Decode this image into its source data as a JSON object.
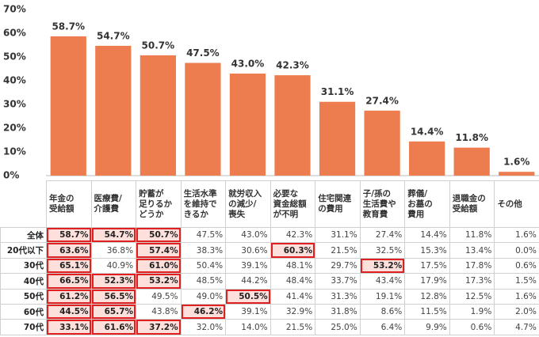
{
  "chart_data": {
    "type": "bar",
    "categories": [
      "年金の\n受給額",
      "医療費/\n介護費",
      "貯蓄が\n足りるか\nどうか",
      "生活水準\nを維持で\nきるか",
      "就労収入\nの減少/\n喪失",
      "必要な\n資金総額\nが不明",
      "住宅関連\nの費用",
      "子/孫の\n生活費や\n教育費",
      "葬儀/\nお墓の\n費用",
      "退職金の\n受給額",
      "その他"
    ],
    "values": [
      58.7,
      54.7,
      50.7,
      47.5,
      43.0,
      42.3,
      31.1,
      27.4,
      14.4,
      11.8,
      1.6
    ],
    "value_labels": [
      "58.7%",
      "54.7%",
      "50.7%",
      "47.5%",
      "43.0%",
      "42.3%",
      "31.1%",
      "27.4%",
      "14.4%",
      "11.8%",
      "1.6%"
    ],
    "color": "#ed7d4f",
    "ylim": [
      0,
      70
    ],
    "yticks": [
      {
        "value": 0,
        "label": "0%"
      },
      {
        "value": 10,
        "label": "10%"
      },
      {
        "value": 20,
        "label": "20%"
      },
      {
        "value": 30,
        "label": "30%"
      },
      {
        "value": 40,
        "label": "40%"
      },
      {
        "value": 50,
        "label": "50%"
      },
      {
        "value": 60,
        "label": "60%"
      },
      {
        "value": 70,
        "label": "70%"
      }
    ]
  },
  "table": {
    "highlight_color": "#fde0dc",
    "border_color": "#e02020",
    "rows": [
      {
        "label": "全体",
        "cells": [
          "58.7%",
          "54.7%",
          "50.7%",
          "47.5%",
          "43.0%",
          "42.3%",
          "31.1%",
          "27.4%",
          "14.4%",
          "11.8%",
          "1.6%"
        ],
        "highlight": [
          0,
          1,
          2
        ]
      },
      {
        "label": "20代以下",
        "cells": [
          "63.6%",
          "36.8%",
          "57.4%",
          "38.3%",
          "30.6%",
          "60.3%",
          "21.5%",
          "32.5%",
          "15.3%",
          "13.4%",
          "0.0%"
        ],
        "highlight": [
          0,
          2,
          5
        ]
      },
      {
        "label": "30代",
        "cells": [
          "65.1%",
          "40.9%",
          "61.0%",
          "50.4%",
          "39.1%",
          "48.1%",
          "29.7%",
          "53.2%",
          "17.5%",
          "17.8%",
          "0.6%"
        ],
        "highlight": [
          0,
          2,
          7
        ]
      },
      {
        "label": "40代",
        "cells": [
          "66.5%",
          "52.3%",
          "53.2%",
          "48.5%",
          "44.2%",
          "48.4%",
          "33.7%",
          "43.4%",
          "17.9%",
          "17.3%",
          "1.5%"
        ],
        "highlight": [
          0,
          1,
          2
        ]
      },
      {
        "label": "50代",
        "cells": [
          "61.2%",
          "56.5%",
          "49.5%",
          "49.0%",
          "50.5%",
          "41.4%",
          "31.3%",
          "19.1%",
          "12.8%",
          "12.5%",
          "1.6%"
        ],
        "highlight": [
          0,
          1,
          4
        ]
      },
      {
        "label": "60代",
        "cells": [
          "44.5%",
          "65.7%",
          "43.8%",
          "46.2%",
          "39.1%",
          "32.9%",
          "31.8%",
          "8.6%",
          "11.5%",
          "1.9%",
          "2.0%"
        ],
        "highlight": [
          0,
          1,
          3
        ]
      },
      {
        "label": "70代",
        "cells": [
          "33.1%",
          "61.6%",
          "37.2%",
          "32.0%",
          "14.0%",
          "21.5%",
          "25.0%",
          "6.4%",
          "9.9%",
          "0.6%",
          "4.7%"
        ],
        "highlight": [
          0,
          1,
          2
        ]
      }
    ]
  }
}
